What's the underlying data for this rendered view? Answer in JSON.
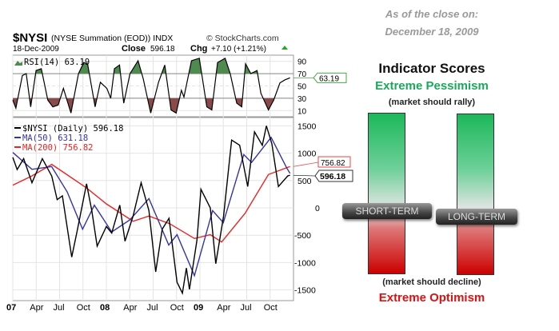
{
  "header": {
    "symbol": "$NYSI",
    "desc": "(NYSE Summation (EOD)) INDX",
    "source": "© StockCharts.com",
    "date": "18-Dec-2009",
    "close_label": "Close",
    "close_value": "596.18",
    "chg_label": "Chg",
    "chg_value": "+7.10 (+1.21%)"
  },
  "chart_data": [
    {
      "type": "line",
      "title": "RSI(14) 63.19",
      "ylim": [
        0,
        100
      ],
      "yticks": [
        10,
        30,
        50,
        70,
        90
      ],
      "last_label": "63.19",
      "fill_above": 70,
      "fill_below": 30,
      "colors": {
        "line": "#000000",
        "above": "#4f8a4f",
        "below": "#8a4a4a"
      },
      "series": [
        {
          "name": "RSI(14)",
          "x": [
            "2007-01-01",
            "2007-01-13",
            "2007-02-08",
            "2007-02-23",
            "2007-03-10",
            "2007-03-31",
            "2007-04-21",
            "2007-05-16",
            "2007-06-05",
            "2007-06-26",
            "2007-07-16",
            "2007-08-15",
            "2007-09-14",
            "2007-10-04",
            "2007-10-19",
            "2007-11-18",
            "2007-12-08",
            "2008-01-03",
            "2008-01-18",
            "2008-02-02",
            "2008-02-22",
            "2008-03-08",
            "2008-04-02",
            "2008-05-03",
            "2008-05-23",
            "2008-06-22",
            "2008-07-22",
            "2008-08-16",
            "2008-09-10",
            "2008-09-30",
            "2008-10-20",
            "2008-10-30",
            "2008-11-29",
            "2008-12-29",
            "2009-01-28",
            "2009-02-17",
            "2009-03-09",
            "2009-04-08",
            "2009-04-28",
            "2009-05-23",
            "2009-06-12",
            "2009-06-27",
            "2009-07-17",
            "2009-08-11",
            "2009-08-26",
            "2009-09-25",
            "2009-10-15",
            "2009-11-09",
            "2009-11-29",
            "2009-12-18"
          ],
          "values": [
            27,
            14,
            67,
            70,
            16,
            75,
            78,
            27,
            16,
            19,
            46,
            6,
            70,
            88,
            86,
            16,
            56,
            46,
            30,
            78,
            84,
            22,
            70,
            91,
            62,
            6,
            56,
            84,
            11,
            6,
            43,
            32,
            91,
            95,
            16,
            11,
            88,
            95,
            70,
            22,
            16,
            86,
            70,
            75,
            38,
            11,
            27,
            55,
            60,
            63.19
          ]
        }
      ]
    },
    {
      "type": "line",
      "ylim": [
        -1750,
        1650
      ],
      "yticks": [
        1500,
        1000,
        500,
        0,
        -500,
        -1000,
        -1500
      ],
      "xticks": [
        "07",
        "Apr",
        "Jul",
        "Oct",
        "08",
        "Apr",
        "Jul",
        "Oct",
        "09",
        "Apr",
        "Jul",
        "Oct"
      ],
      "grid": true,
      "legend": "top-left",
      "last_labels": {
        "price": "596.18",
        "ma200": "756.82"
      },
      "series": [
        {
          "name": "$NYSI (Daily) 596.18",
          "color": "#000000",
          "x": [
            "2007-01-01",
            "2007-01-18",
            "2007-02-13",
            "2007-03-15",
            "2007-04-25",
            "2007-06-01",
            "2007-06-22",
            "2007-07-12",
            "2007-08-18",
            "2007-09-08",
            "2007-10-15",
            "2007-11-05",
            "2007-11-26",
            "2008-01-01",
            "2008-01-22",
            "2008-02-23",
            "2008-03-13",
            "2008-04-14",
            "2008-05-15",
            "2008-06-15",
            "2008-07-11",
            "2008-08-06",
            "2008-09-02",
            "2008-10-03",
            "2008-10-24",
            "2008-11-09",
            "2008-11-21",
            "2008-12-20",
            "2009-01-05",
            "2009-02-11",
            "2009-03-02",
            "2009-04-02",
            "2009-05-03",
            "2009-06-04",
            "2009-07-05",
            "2009-08-01",
            "2009-09-01",
            "2009-09-17",
            "2009-10-08",
            "2009-11-03",
            "2009-12-09",
            "2009-12-18"
          ],
          "values": [
            925,
            700,
            900,
            460,
            900,
            580,
            150,
            220,
            -900,
            -440,
            440,
            -50,
            -700,
            -340,
            -460,
            50,
            -610,
            -150,
            460,
            -50,
            -1170,
            -390,
            -190,
            -1360,
            -1560,
            -1100,
            -1490,
            -585,
            340,
            0,
            -1020,
            -150,
            1240,
            1145,
            390,
            1390,
            1145,
            1500,
            1170,
            390,
            585,
            596.18
          ]
        },
        {
          "name": "MA(50) 631.18",
          "color": "#3333aa",
          "x": [
            "2007-01-01",
            "2007-03-15",
            "2007-05-31",
            "2007-07-31",
            "2007-09-30",
            "2007-11-15",
            "2008-01-22",
            "2008-04-01",
            "2008-06-15",
            "2008-09-01",
            "2008-10-03",
            "2008-12-10",
            "2009-02-20",
            "2009-04-01",
            "2009-06-20",
            "2009-07-20",
            "2009-10-05",
            "2009-12-05",
            "2009-12-18"
          ],
          "values": [
            1013,
            705,
            755,
            290,
            -390,
            50,
            -440,
            -220,
            170,
            -680,
            -490,
            -1240,
            -50,
            -270,
            975,
            830,
            1290,
            730,
            631.18
          ]
        },
        {
          "name": "MA(200) 756.82",
          "color": "#ee2222",
          "x": [
            "2007-01-01",
            "2007-03-15",
            "2007-06-01",
            "2007-10-15",
            "2008-01-01",
            "2008-04-14",
            "2008-06-15",
            "2008-09-05",
            "2008-12-10",
            "2009-02-11",
            "2009-03-25",
            "2009-06-25",
            "2009-09-25",
            "2009-12-18"
          ],
          "values": [
            415,
            585,
            795,
            365,
            73,
            -245,
            -150,
            -290,
            -560,
            -490,
            -625,
            -100,
            610,
            756.82
          ]
        }
      ]
    }
  ],
  "indicator": {
    "asof_line1": "As of the close on:",
    "asof_line2": "December 18, 2009",
    "title": "Indicator Scores",
    "top_label": "Extreme Pessimism",
    "top_sub": "(market should rally)",
    "bottom_sub": "(market should decline)",
    "bottom_label": "Extreme Optimism",
    "colors": {
      "pessimism": "#1aa85a",
      "optimism": "#e01010"
    },
    "markers": [
      {
        "label": "SHORT-TERM",
        "score": 0.39
      },
      {
        "label": "LONG-TERM",
        "score": 0.355
      }
    ]
  }
}
